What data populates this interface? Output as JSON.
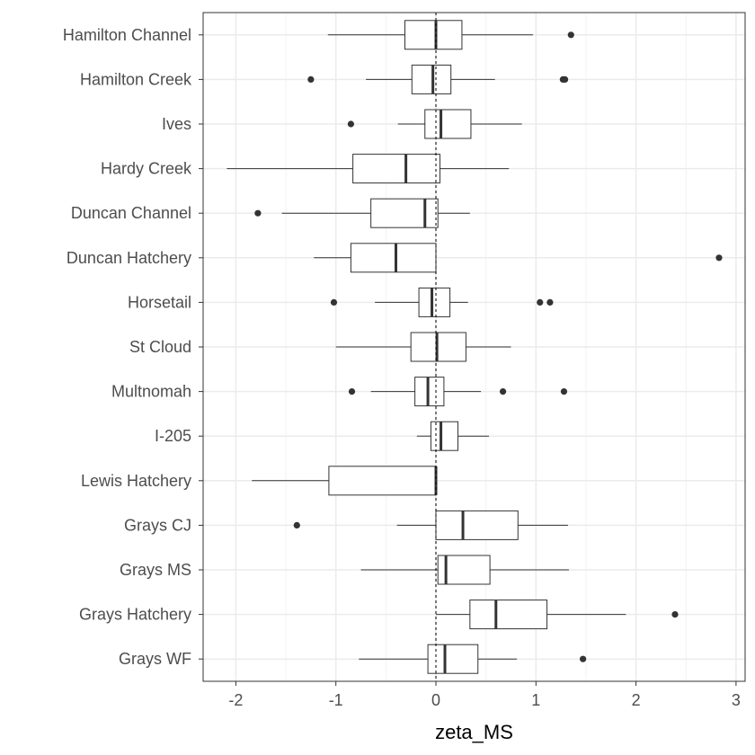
{
  "chart_data": {
    "type": "boxplot",
    "orientation": "horizontal",
    "xlabel": "zeta_MS",
    "ylabel": "",
    "xlim": [
      -2.3,
      3.05
    ],
    "x_ticks": [
      -2,
      -1,
      0,
      1,
      2,
      3
    ],
    "reference_line": {
      "x": 0,
      "style": "dashed"
    },
    "grid": true,
    "categories": [
      "Hamilton Channel",
      "Hamilton Creek",
      "Ives",
      "Hardy Creek",
      "Duncan Channel",
      "Duncan Hatchery",
      "Horsetail",
      "St Cloud",
      "Multnomah",
      "I-205",
      "Lewis Hatchery",
      "Grays CJ",
      "Grays MS",
      "Grays Hatchery",
      "Grays WF"
    ],
    "boxes": [
      {
        "label": "Hamilton Channel",
        "whisker_low": -1.08,
        "q1": -0.31,
        "median": 0.0,
        "q3": 0.26,
        "whisker_high": 0.97,
        "outliers": [
          1.35
        ]
      },
      {
        "label": "Hamilton Creek",
        "whisker_low": -0.7,
        "q1": -0.24,
        "median": -0.03,
        "q3": 0.15,
        "whisker_high": 0.59,
        "outliers": [
          -1.25,
          1.27,
          1.29
        ]
      },
      {
        "label": "Ives",
        "whisker_low": -0.38,
        "q1": -0.11,
        "median": 0.05,
        "q3": 0.35,
        "whisker_high": 0.86,
        "outliers": [
          -0.85
        ]
      },
      {
        "label": "Hardy Creek",
        "whisker_low": -2.09,
        "q1": -0.83,
        "median": -0.3,
        "q3": 0.04,
        "whisker_high": 0.73,
        "outliers": []
      },
      {
        "label": "Duncan Channel",
        "whisker_low": -1.54,
        "q1": -0.65,
        "median": -0.11,
        "q3": 0.02,
        "whisker_high": 0.34,
        "outliers": [
          -1.78
        ]
      },
      {
        "label": "Duncan Hatchery",
        "whisker_low": -1.22,
        "q1": -0.85,
        "median": -0.4,
        "q3": 0.0,
        "whisker_high": 0.0,
        "outliers": [
          2.83
        ]
      },
      {
        "label": "Horsetail",
        "whisker_low": -0.61,
        "q1": -0.17,
        "median": -0.04,
        "q3": 0.14,
        "whisker_high": 0.32,
        "outliers": [
          -1.02,
          1.04,
          1.14
        ]
      },
      {
        "label": "St Cloud",
        "whisker_low": -1.0,
        "q1": -0.25,
        "median": 0.01,
        "q3": 0.3,
        "whisker_high": 0.75,
        "outliers": []
      },
      {
        "label": "Multnomah",
        "whisker_low": -0.65,
        "q1": -0.21,
        "median": -0.08,
        "q3": 0.08,
        "whisker_high": 0.45,
        "outliers": [
          -0.84,
          0.67,
          1.28
        ]
      },
      {
        "label": "I-205",
        "whisker_low": -0.19,
        "q1": -0.05,
        "median": 0.05,
        "q3": 0.22,
        "whisker_high": 0.53,
        "outliers": []
      },
      {
        "label": "Lewis Hatchery",
        "whisker_low": -1.84,
        "q1": -1.07,
        "median": 0.0,
        "q3": 0.0,
        "whisker_high": 0.0,
        "outliers": []
      },
      {
        "label": "Grays CJ",
        "whisker_low": -0.39,
        "q1": 0.0,
        "median": 0.27,
        "q3": 0.82,
        "whisker_high": 1.32,
        "outliers": [
          -1.39
        ]
      },
      {
        "label": "Grays MS",
        "whisker_low": -0.75,
        "q1": 0.02,
        "median": 0.1,
        "q3": 0.54,
        "whisker_high": 1.33,
        "outliers": []
      },
      {
        "label": "Grays Hatchery",
        "whisker_low": 0.0,
        "q1": 0.34,
        "median": 0.6,
        "q3": 1.11,
        "whisker_high": 1.9,
        "outliers": [
          2.39
        ]
      },
      {
        "label": "Grays WF",
        "whisker_low": -0.77,
        "q1": -0.08,
        "median": 0.09,
        "q3": 0.42,
        "whisker_high": 0.81,
        "outliers": [
          1.47
        ]
      }
    ]
  }
}
